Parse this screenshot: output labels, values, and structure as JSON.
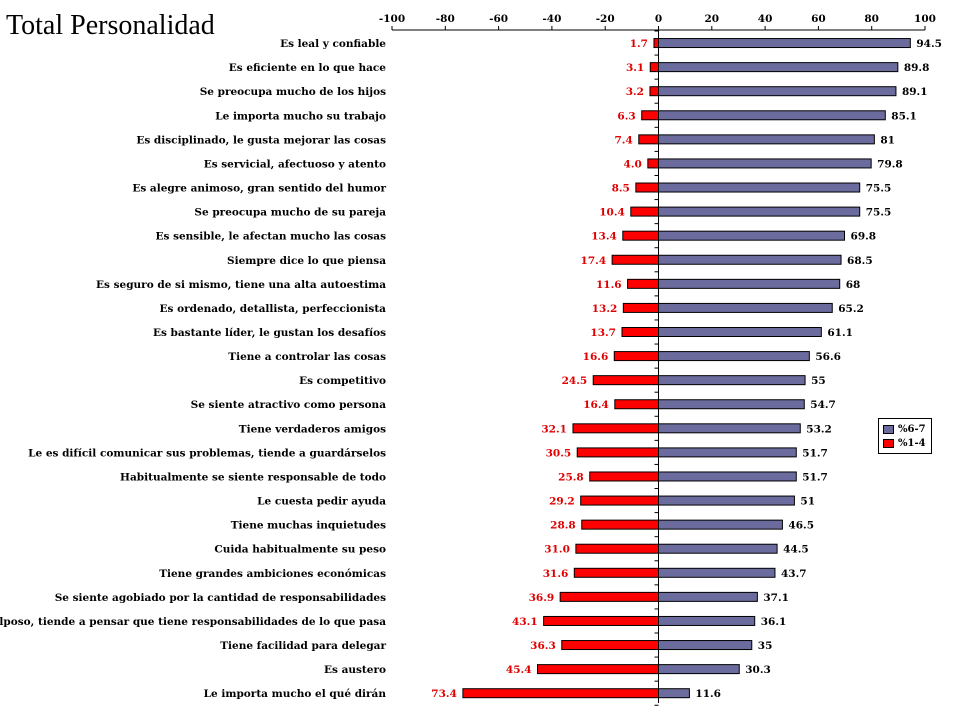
{
  "title": "Total Personalidad",
  "colors": {
    "pos": "#6b6b9e",
    "neg": "#ff0000",
    "neg_label": "#e00000"
  },
  "legend": {
    "pos": "%6-7",
    "neg": "%1-4"
  },
  "chart_data": {
    "type": "bar",
    "orientation": "horizontal",
    "title": "Total Personalidad",
    "xlim": [
      -100,
      100
    ],
    "xticks": [
      "-100",
      "-80",
      "-60",
      "-40",
      "-20",
      "0",
      "20",
      "40",
      "60",
      "80",
      "100"
    ],
    "categories": [
      "Es leal y confiable",
      "Es eficiente en lo que hace",
      "Se preocupa mucho de los hijos",
      "Le importa mucho su trabajo",
      "Es disciplinado, le gusta mejorar las cosas",
      "Es servicial, afectuoso y atento",
      "Es alegre animoso, gran sentido del humor",
      "Se preocupa mucho de su pareja",
      "Es sensible, le afectan mucho las cosas",
      "Siempre dice lo que piensa",
      "Es seguro de si mismo, tiene una alta autoestima",
      "Es ordenado, detallista, perfeccionista",
      "Es bastante líder, le gustan los desafíos",
      "Tiene a controlar las cosas",
      "Es competitivo",
      "Se siente atractivo como persona",
      "Tiene verdaderos amigos",
      "Le es difícil comunicar sus problemas, tiende a guardárselos",
      "Habitualmente se siente responsable de todo",
      "Le cuesta pedir ayuda",
      "Tiene muchas inquietudes",
      "Cuida habitualmente su peso",
      "Tiene grandes ambiciones económicas",
      "Se siente agobiado por la cantidad de responsabilidades",
      "Es culposo, tiende a pensar que tiene responsabilidades de lo que pasa",
      "Tiene facilidad para delegar",
      "Es austero",
      "Le importa mucho el qué dirán"
    ],
    "series": [
      {
        "name": "%6-7",
        "values": [
          94.5,
          89.8,
          89.1,
          85.1,
          81,
          79.8,
          75.5,
          75.5,
          69.8,
          68.5,
          68,
          65.2,
          61.1,
          56.6,
          55,
          54.7,
          53.2,
          51.7,
          51.7,
          51,
          46.5,
          44.5,
          43.7,
          37.1,
          36.1,
          35,
          30.3,
          11.6
        ],
        "labels": [
          "94.5",
          "89.8",
          "89.1",
          "85.1",
          "81",
          "79.8",
          "75.5",
          "75.5",
          "69.8",
          "68.5",
          "68",
          "65.2",
          "61.1",
          "56.6",
          "55",
          "54.7",
          "53.2",
          "51.7",
          "51.7",
          "51",
          "46.5",
          "44.5",
          "43.7",
          "37.1",
          "36.1",
          "35",
          "30.3",
          "11.6"
        ]
      },
      {
        "name": "%1-4",
        "values": [
          -1.7,
          -3.1,
          -3.2,
          -6.3,
          -7.4,
          -4.0,
          -8.5,
          -10.4,
          -13.4,
          -17.4,
          -11.6,
          -13.2,
          -13.7,
          -16.6,
          -24.5,
          -16.4,
          -32.1,
          -30.5,
          -25.8,
          -29.2,
          -28.8,
          -31.0,
          -31.6,
          -36.9,
          -43.1,
          -36.3,
          -45.4,
          -73.4
        ],
        "labels": [
          "1.7",
          "3.1",
          "3.2",
          "6.3",
          "7.4",
          "4.0",
          "8.5",
          "10.4",
          "13.4",
          "17.4",
          "11.6",
          "13.2",
          "13.7",
          "16.6",
          "24.5",
          "16.4",
          "32.1",
          "30.5",
          "25.8",
          "29.2",
          "28.8",
          "31.0",
          "31.6",
          "36.9",
          "43.1",
          "36.3",
          "45.4",
          "73.4"
        ]
      }
    ],
    "legend_position": "right"
  }
}
